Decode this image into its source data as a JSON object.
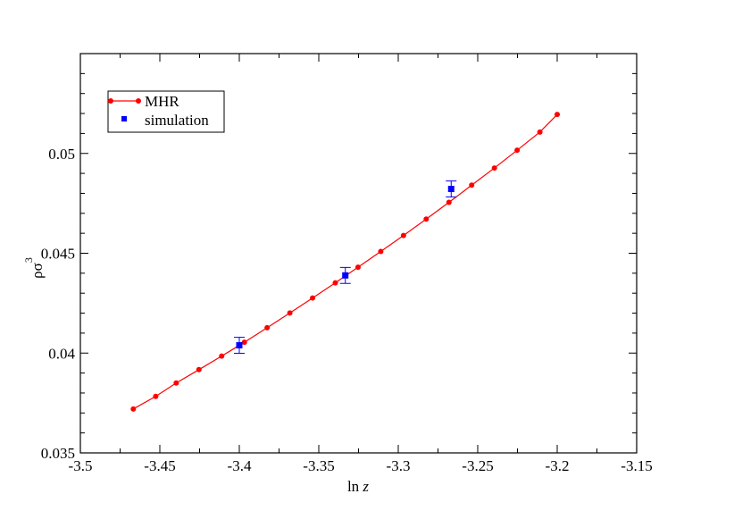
{
  "chart_data": {
    "type": "scatter",
    "xlabel": "ln z",
    "xlabel_parts": {
      "prefix": "ln ",
      "var": "z"
    },
    "ylabel": "ρσ3",
    "ylabel_parts": {
      "base": "ρσ",
      "sup": "3"
    },
    "xlim": [
      -3.5,
      -3.15
    ],
    "ylim": [
      0.035,
      0.055
    ],
    "xticks": [
      -3.5,
      -3.45,
      -3.4,
      -3.35,
      -3.3,
      -3.25,
      -3.2,
      -3.15
    ],
    "xtick_labels": [
      "-3.5",
      "-3.45",
      "-3.4",
      "-3.35",
      "-3.3",
      "-3.25",
      "-3.2",
      "-3.15"
    ],
    "yticks": [
      0.035,
      0.04,
      0.045,
      0.05
    ],
    "ytick_labels": [
      "0.035",
      "0.04",
      "0.045",
      "0.05"
    ],
    "grid": false,
    "legend_position": "top-left",
    "series": [
      {
        "name": "MHR",
        "style": "line-with-markers",
        "color": "#ff0000",
        "x": [
          -3.4667,
          -3.4526,
          -3.4397,
          -3.4254,
          -3.4111,
          -3.3968,
          -3.3825,
          -3.3682,
          -3.3539,
          -3.3396,
          -3.3253,
          -3.311,
          -3.2967,
          -3.2824,
          -3.2681,
          -3.2538,
          -3.2395,
          -3.2252,
          -3.2109,
          -3.2
        ],
        "y": [
          0.0372,
          0.03783,
          0.0385,
          0.03917,
          0.03985,
          0.04054,
          0.04127,
          0.04201,
          0.04276,
          0.04352,
          0.0443,
          0.04509,
          0.04589,
          0.04671,
          0.04755,
          0.04841,
          0.04927,
          0.05016,
          0.05107,
          0.05195
        ]
      },
      {
        "name": "simulation",
        "style": "markers-with-errorbars",
        "color": "#0000ff",
        "x": [
          -3.4,
          -3.3333,
          -3.2667
        ],
        "y": [
          0.04039,
          0.04389,
          0.04822
        ],
        "yerr": [
          0.0004,
          0.0004,
          0.0004
        ]
      }
    ]
  }
}
